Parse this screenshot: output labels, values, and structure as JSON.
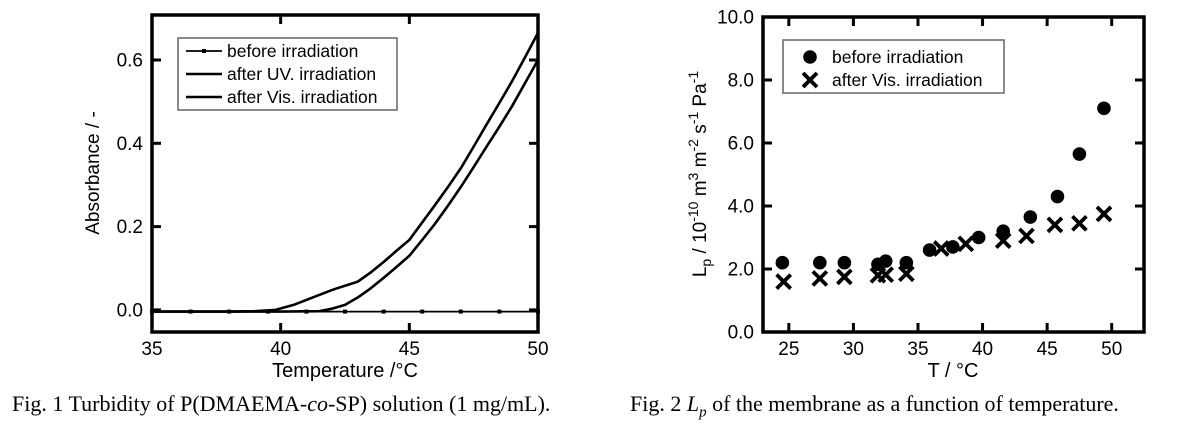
{
  "colors": {
    "ink": "#000000",
    "background": "#ffffff"
  },
  "captions": {
    "fig1": {
      "prefix": "Fig. 1 Turbidity of P(DMAEMA-",
      "italic": "co",
      "suffix": "-SP) solution (1 mg/mL)."
    },
    "fig2": {
      "prefix": "Fig. 2 ",
      "italic_main": "L",
      "italic_sub": "p",
      "suffix": " of the membrane as a function of temperature."
    }
  },
  "chart_data": [
    {
      "id": "fig1-turbidity",
      "type": "line",
      "title": "",
      "xlabel": "Temperature /°C",
      "ylabel": "Absorbance / -",
      "xlim": [
        35,
        50
      ],
      "ylim": [
        -0.053,
        0.708
      ],
      "xticks": [
        35,
        40,
        45,
        50
      ],
      "yticks": [
        0.0,
        0.2,
        0.4,
        0.6
      ],
      "xtick_decimals": 0,
      "ytick_decimals": 1,
      "grid": false,
      "legend_position": "top-left",
      "series": [
        {
          "name": "before irradiation",
          "render": "line",
          "marker": "dot",
          "color": "#000000",
          "x": [
            35,
            36.5,
            38,
            39.5,
            41,
            42.5,
            44,
            45.5,
            47,
            48.5,
            50
          ],
          "y": [
            -0.004,
            -0.004,
            -0.004,
            -0.004,
            -0.004,
            -0.004,
            -0.004,
            -0.004,
            -0.004,
            -0.004,
            -0.004
          ]
        },
        {
          "name": "after UV. irradiation",
          "render": "line",
          "marker": "none",
          "color": "#000000",
          "x": [
            35,
            38,
            39,
            39.8,
            40.5,
            41,
            41.5,
            42,
            42.5,
            43,
            43.5,
            44,
            44.5,
            45,
            45.5,
            46,
            46.5,
            47,
            47.5,
            48,
            48.5,
            49,
            49.5,
            50
          ],
          "y": [
            -0.004,
            -0.004,
            -0.003,
            0.0,
            0.012,
            0.024,
            0.036,
            0.048,
            0.058,
            0.068,
            0.09,
            0.115,
            0.142,
            0.168,
            0.21,
            0.252,
            0.295,
            0.34,
            0.392,
            0.445,
            0.497,
            0.55,
            0.607,
            0.665
          ]
        },
        {
          "name": "after Vis. irradiation",
          "render": "line",
          "marker": "none",
          "color": "#000000",
          "x": [
            35,
            40,
            41.5,
            42,
            42.5,
            43,
            43.5,
            44,
            44.5,
            45,
            45.5,
            46,
            46.5,
            47,
            47.5,
            48,
            48.5,
            49,
            49.5,
            50
          ],
          "y": [
            -0.004,
            -0.004,
            -0.003,
            0.003,
            0.012,
            0.03,
            0.052,
            0.077,
            0.103,
            0.13,
            0.168,
            0.207,
            0.25,
            0.295,
            0.343,
            0.392,
            0.44,
            0.49,
            0.545,
            0.6
          ]
        }
      ]
    },
    {
      "id": "fig2-lp",
      "type": "scatter",
      "title": "",
      "xlabel": "T / °C",
      "ylabel": "Lp / 10-10 m3 m-2 s-1 Pa-1",
      "ylabel_rich": [
        [
          "L",
          "n"
        ],
        [
          "p",
          "sub"
        ],
        [
          " / 10",
          "n"
        ],
        [
          "-10",
          "sup"
        ],
        [
          " m",
          "n"
        ],
        [
          "3",
          "sup"
        ],
        [
          " m",
          "n"
        ],
        [
          "-2",
          "sup"
        ],
        [
          " s",
          "n"
        ],
        [
          "-1",
          "sup"
        ],
        [
          " Pa",
          "n"
        ],
        [
          "-1",
          "sup"
        ]
      ],
      "xlim": [
        23,
        52.5
      ],
      "ylim": [
        0,
        10
      ],
      "xticks": [
        25,
        30,
        35,
        40,
        45,
        50
      ],
      "yticks": [
        0.0,
        2.0,
        4.0,
        6.0,
        8.0,
        10.0
      ],
      "xtick_decimals": 0,
      "ytick_decimals": 1,
      "grid": false,
      "legend_position": "top-left",
      "series": [
        {
          "name": "before irradiation",
          "render": "scatter",
          "marker": "circle",
          "color": "#000000",
          "points": [
            [
              24.5,
              2.2
            ],
            [
              27.4,
              2.2
            ],
            [
              29.3,
              2.2
            ],
            [
              31.9,
              2.15
            ],
            [
              32.5,
              2.25
            ],
            [
              34.1,
              2.2
            ],
            [
              35.9,
              2.6
            ],
            [
              37.7,
              2.7
            ],
            [
              39.7,
              3.0
            ],
            [
              41.6,
              3.2
            ],
            [
              43.7,
              3.65
            ],
            [
              45.8,
              4.3
            ],
            [
              47.5,
              5.65
            ],
            [
              49.4,
              7.1
            ]
          ]
        },
        {
          "name": "after Vis. irradiation",
          "render": "scatter",
          "marker": "x",
          "color": "#000000",
          "points": [
            [
              24.6,
              1.6
            ],
            [
              27.4,
              1.7
            ],
            [
              29.3,
              1.75
            ],
            [
              31.9,
              1.8
            ],
            [
              32.5,
              1.82
            ],
            [
              34.1,
              1.85
            ],
            [
              36.8,
              2.65
            ],
            [
              38.7,
              2.8
            ],
            [
              41.6,
              2.9
            ],
            [
              43.4,
              3.05
            ],
            [
              45.6,
              3.4
            ],
            [
              47.5,
              3.45
            ],
            [
              49.4,
              3.75
            ]
          ]
        }
      ]
    }
  ]
}
